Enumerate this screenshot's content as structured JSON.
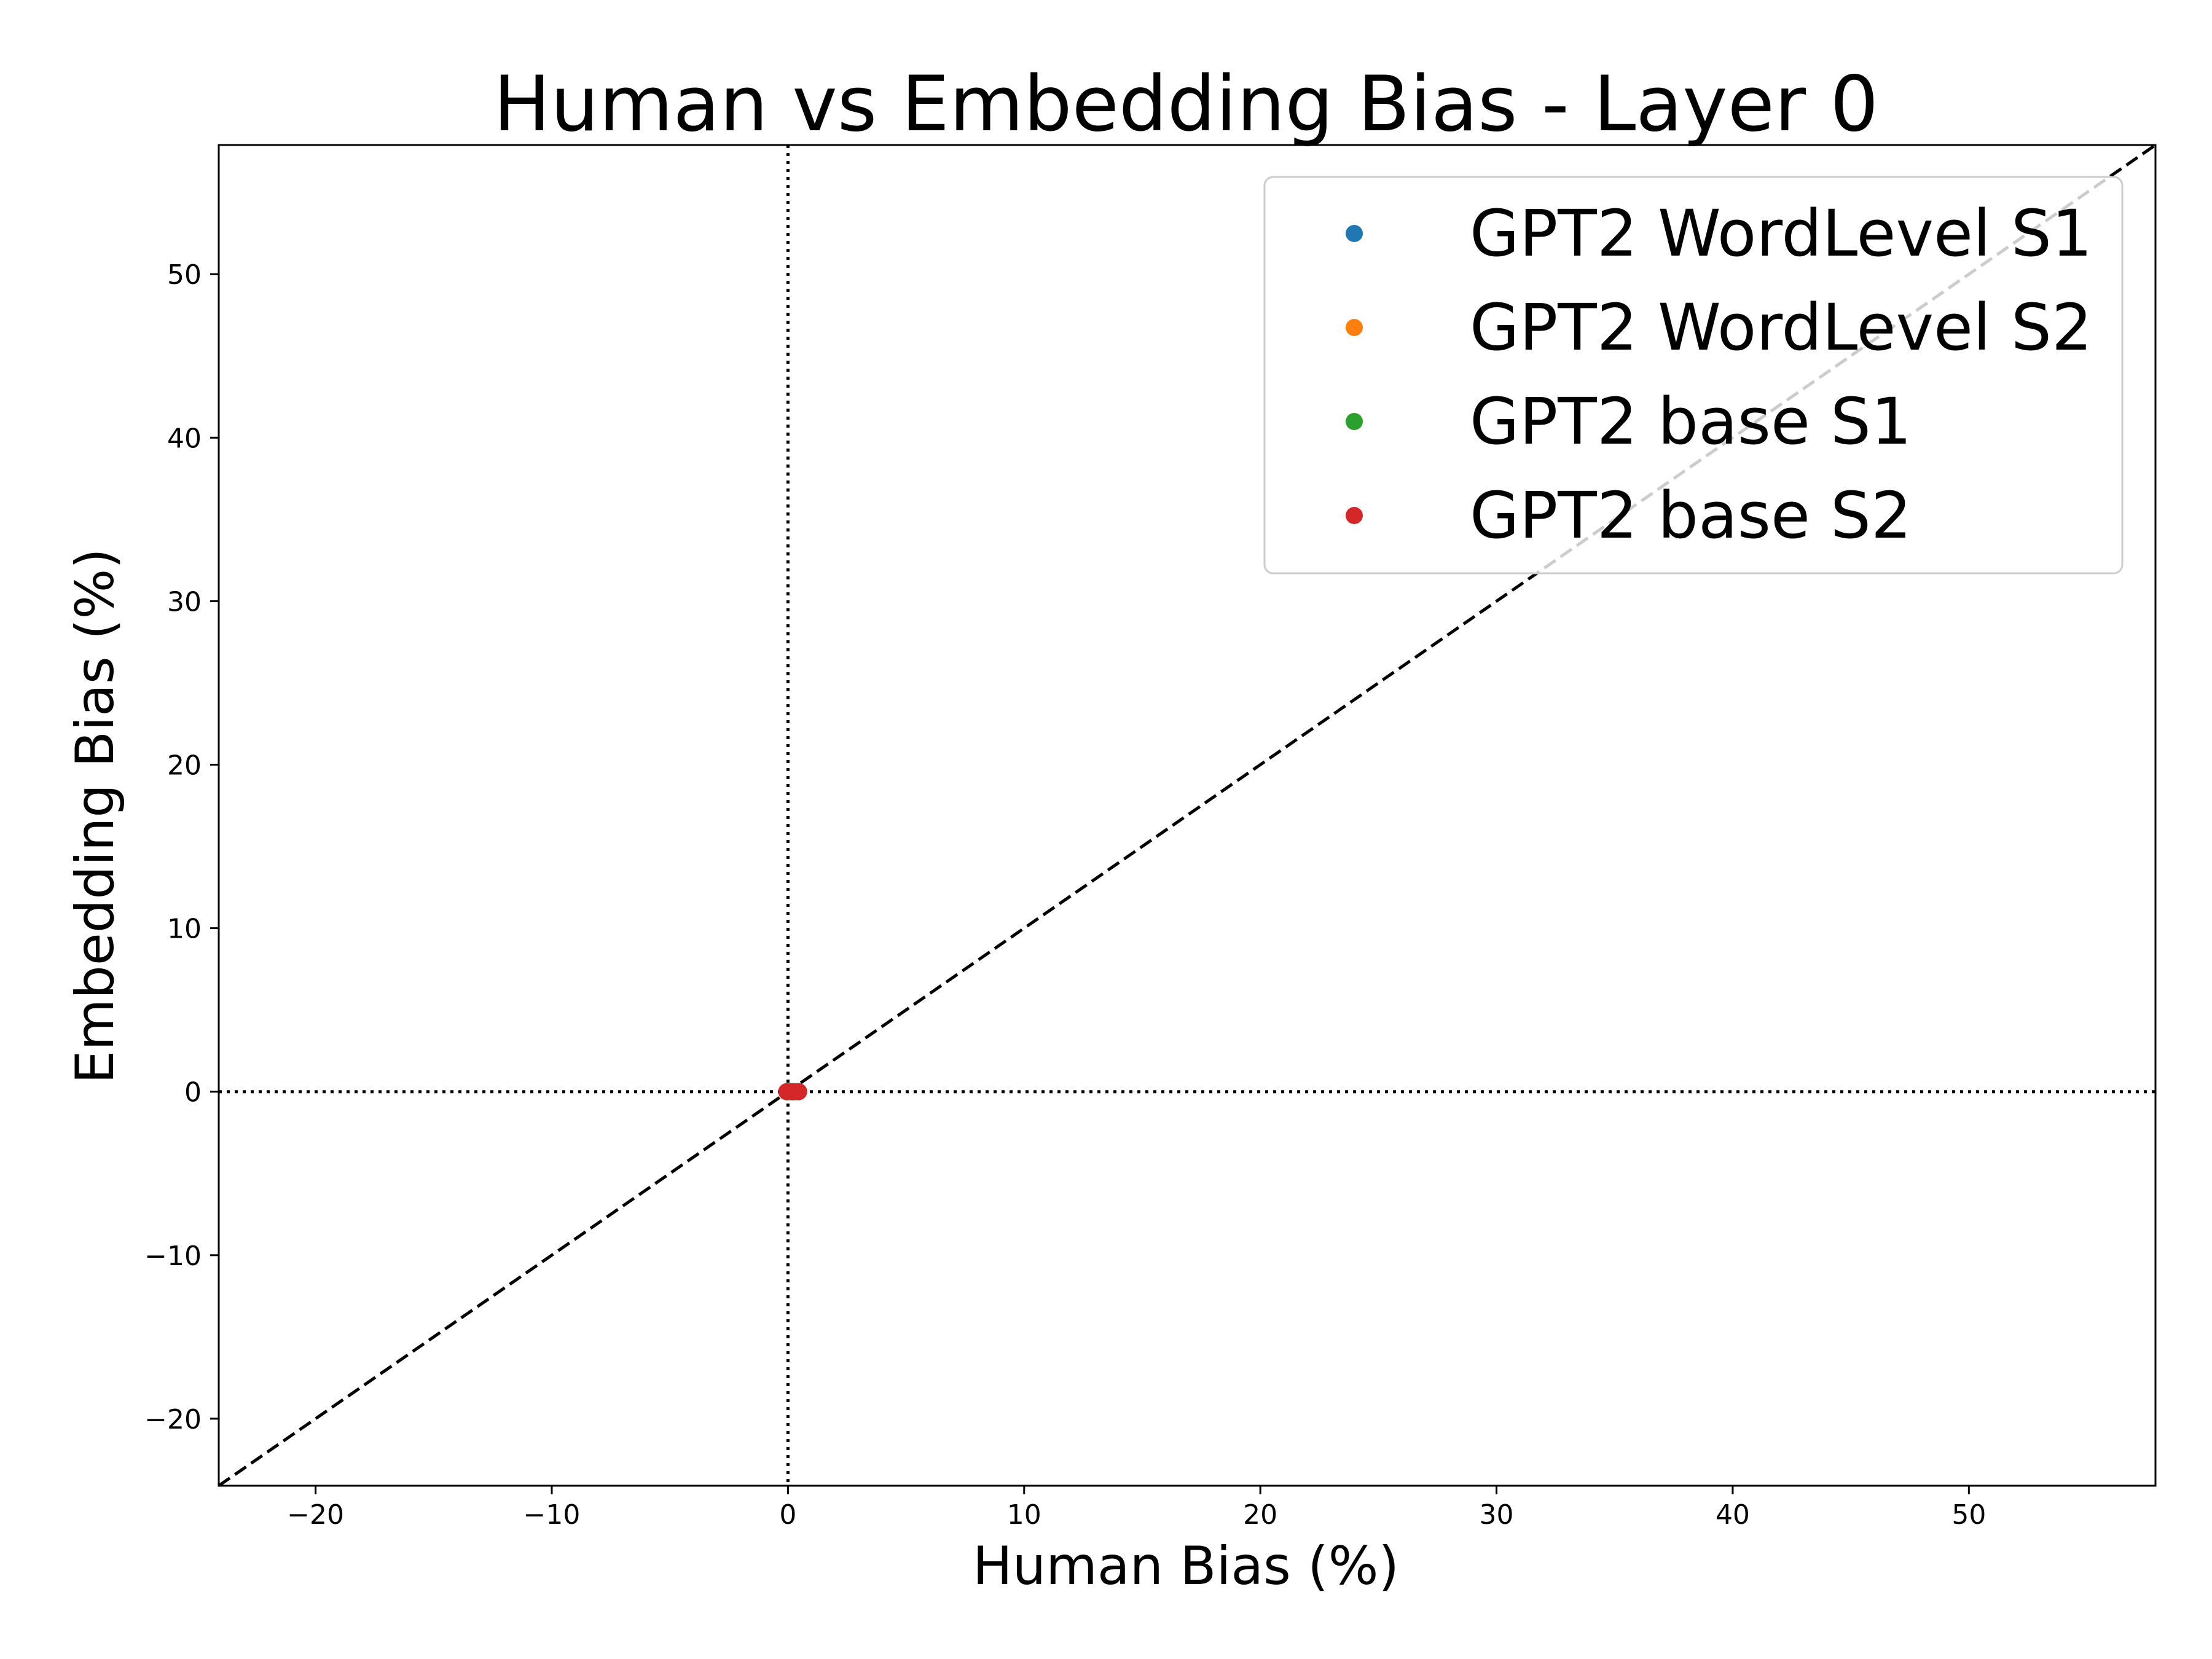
{
  "chart_data": {
    "type": "scatter",
    "title": "Human vs Embedding Bias - Layer 0",
    "xlabel": "Human Bias (%)",
    "ylabel": "Embedding Bias (%)",
    "xlim": [
      -24.1,
      57.9
    ],
    "ylim": [
      -24.1,
      57.9
    ],
    "xticks": [
      -20,
      -10,
      0,
      10,
      20,
      30,
      40,
      50
    ],
    "yticks": [
      -20,
      -10,
      0,
      10,
      20,
      30,
      40,
      50
    ],
    "xtick_labels": [
      "−20",
      "−10",
      "0",
      "10",
      "20",
      "30",
      "40",
      "50"
    ],
    "ytick_labels": [
      "−20",
      "−10",
      "0",
      "10",
      "20",
      "30",
      "40",
      "50"
    ],
    "grid": false,
    "legend_position": "upper-right",
    "reference_lines": [
      {
        "kind": "diagonal",
        "style": "dashed",
        "color": "#000000"
      },
      {
        "kind": "vertical",
        "x": 0,
        "style": "dotted",
        "color": "#000000"
      },
      {
        "kind": "horizontal",
        "y": 0,
        "style": "dotted",
        "color": "#000000"
      }
    ],
    "series": [
      {
        "name": "GPT2 WordLevel S1",
        "color": "#1f77b4",
        "points": [
          [
            0.0,
            0.0
          ],
          [
            0.1,
            0.0
          ],
          [
            0.25,
            0.0
          ]
        ]
      },
      {
        "name": "GPT2 WordLevel S2",
        "color": "#ff7f0e",
        "points": [
          [
            0.05,
            0.0
          ],
          [
            0.2,
            0.0
          ],
          [
            0.35,
            0.0
          ]
        ]
      },
      {
        "name": "GPT2 base S1",
        "color": "#2ca02c",
        "points": [
          [
            0.0,
            0.0
          ],
          [
            0.15,
            0.0
          ],
          [
            0.3,
            0.0
          ]
        ]
      },
      {
        "name": "GPT2 base S2",
        "color": "#d62728",
        "points": [
          [
            -0.05,
            0.0
          ],
          [
            0.2,
            0.0
          ],
          [
            0.45,
            0.0
          ]
        ]
      }
    ]
  }
}
